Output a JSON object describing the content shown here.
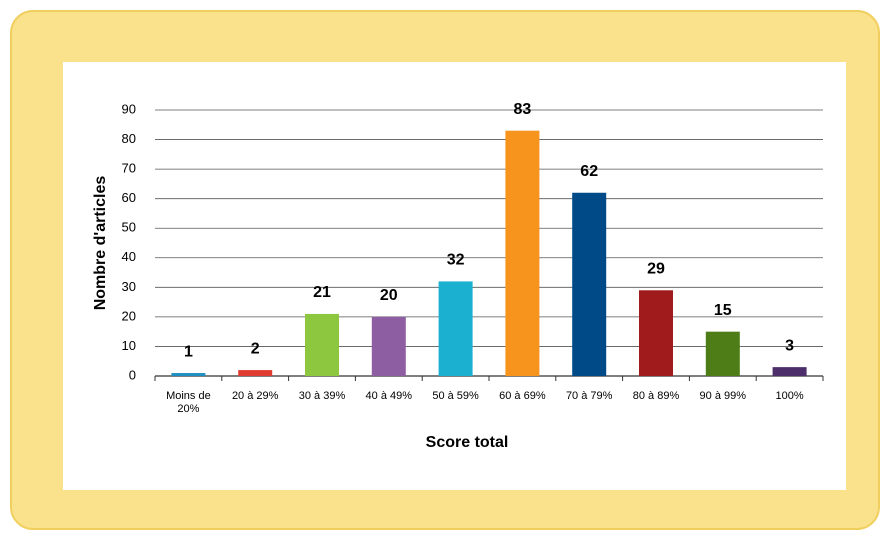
{
  "chart_data": {
    "type": "bar",
    "x_label": "Score total",
    "y_label": "Nombre d'articles",
    "categories": [
      "Moins de 20%",
      "20 à 29%",
      "30 à 39%",
      "40 à 49%",
      "50 à 59%",
      "60 à 69%",
      "70 à 79%",
      "80 à 89%",
      "90 à 99%",
      "100%"
    ],
    "values": [
      1,
      2,
      21,
      20,
      32,
      83,
      62,
      29,
      15,
      3
    ],
    "colors": [
      "#1f8fc2",
      "#e03c31",
      "#8dc63f",
      "#8e5ea2",
      "#1bb0d0",
      "#f7941d",
      "#004b87",
      "#a01c1c",
      "#4e7d17",
      "#4b2e6a"
    ],
    "ylim": [
      0,
      90
    ],
    "yticks": [
      0,
      10,
      20,
      30,
      40,
      50,
      60,
      70,
      80,
      90
    ],
    "grid": true
  }
}
